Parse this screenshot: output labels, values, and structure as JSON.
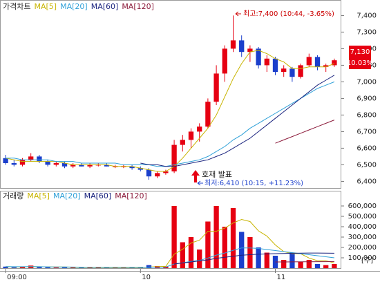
{
  "chart_data": [
    {
      "type": "candlestick",
      "legend_title": "가격차트",
      "categories": [
        "09:00",
        null,
        null,
        null,
        null,
        null,
        null,
        null,
        null,
        null,
        null,
        null,
        null,
        null,
        null,
        null,
        "10",
        null,
        null,
        null,
        null,
        null,
        null,
        null,
        null,
        null,
        null,
        null,
        null,
        null,
        null,
        null,
        "11",
        null,
        null,
        null,
        null,
        null,
        null,
        null
      ],
      "open": [
        6540,
        6510,
        6500,
        6530,
        6550,
        6520,
        6500,
        6510,
        6490,
        6500,
        6490,
        6500,
        6500,
        6490,
        6490,
        6490,
        6480,
        6470,
        6430,
        6450,
        6460,
        6620,
        6650,
        6700,
        6730,
        6880,
        7050,
        7200,
        7250,
        7180,
        7200,
        7100,
        7140,
        7060,
        7080,
        7030,
        7100,
        7150,
        7090,
        7100
      ],
      "high": [
        6560,
        6530,
        6540,
        6570,
        6560,
        6530,
        6520,
        6520,
        6510,
        6510,
        6510,
        6510,
        6510,
        6500,
        6500,
        6500,
        6490,
        6480,
        6460,
        6470,
        6650,
        6680,
        6720,
        6750,
        6900,
        7100,
        7220,
        7400,
        7280,
        7220,
        7210,
        7160,
        7150,
        7100,
        7090,
        7110,
        7170,
        7160,
        7110,
        7140
      ],
      "low": [
        6500,
        6490,
        6490,
        6520,
        6510,
        6490,
        6490,
        6480,
        6480,
        6490,
        6480,
        6490,
        6490,
        6480,
        6480,
        6470,
        6460,
        6410,
        6420,
        6440,
        6450,
        6580,
        6600,
        6640,
        6720,
        6860,
        7000,
        7180,
        7150,
        7120,
        7080,
        7060,
        7040,
        7030,
        7000,
        7020,
        7090,
        7070,
        7060,
        7090
      ],
      "close": [
        6510,
        6500,
        6530,
        6550,
        6520,
        6500,
        6510,
        6490,
        6500,
        6490,
        6500,
        6500,
        6490,
        6490,
        6490,
        6480,
        6470,
        6430,
        6450,
        6460,
        6620,
        6650,
        6700,
        6730,
        6880,
        7050,
        7200,
        7250,
        7180,
        7200,
        7100,
        7140,
        7060,
        7080,
        7030,
        7100,
        7150,
        7090,
        7100,
        7130
      ],
      "up_color": "#e60012",
      "down_color": "#1b3fcc",
      "series": [
        {
          "name": "MA[5]",
          "color": "#c8b400",
          "values": [
            6540,
            6530,
            6520,
            6520,
            6520,
            6520,
            6520,
            6510,
            6500,
            6500,
            6500,
            6500,
            6500,
            6490,
            6490,
            6490,
            6480,
            6470,
            6460,
            6460,
            6490,
            6540,
            6600,
            6660,
            6720,
            6800,
            6910,
            7020,
            7110,
            7180,
            7190,
            7170,
            7140,
            7120,
            7080,
            7080,
            7090,
            7090,
            7090,
            7110
          ]
        },
        {
          "name": "MA[20]",
          "color": "#2ea0d8",
          "values": [
            6540,
            6540,
            6530,
            6530,
            6530,
            6530,
            6520,
            6520,
            6520,
            6510,
            6510,
            6510,
            6510,
            6510,
            6500,
            6500,
            6500,
            6500,
            6490,
            6490,
            6500,
            6510,
            6520,
            6530,
            6550,
            6580,
            6610,
            6650,
            6680,
            6720,
            6750,
            6780,
            6810,
            6840,
            6870,
            6900,
            6930,
            6960,
            6980,
            7000
          ]
        },
        {
          "name": "MA[60]",
          "color": "#1a237e",
          "values": [
            null,
            null,
            null,
            null,
            null,
            null,
            null,
            null,
            null,
            null,
            null,
            null,
            null,
            null,
            null,
            null,
            6510,
            6500,
            6500,
            6490,
            6490,
            6500,
            6510,
            6520,
            6530,
            6550,
            6570,
            6600,
            6630,
            6660,
            6700,
            6740,
            6780,
            6820,
            6860,
            6900,
            6940,
            6980,
            7010,
            7040
          ]
        },
        {
          "name": "MA[120]",
          "color": "#8b1a3a",
          "values": [
            null,
            null,
            null,
            null,
            null,
            null,
            null,
            null,
            null,
            null,
            null,
            null,
            null,
            null,
            null,
            null,
            null,
            null,
            null,
            null,
            null,
            null,
            null,
            null,
            null,
            null,
            null,
            null,
            null,
            null,
            null,
            null,
            6630,
            6650,
            6670,
            6690,
            6710,
            6730,
            6750,
            6770
          ]
        }
      ],
      "ylim": [
        6360,
        7460
      ],
      "yticks": [
        {
          "value": 6400,
          "label": "6,400"
        },
        {
          "value": 6500,
          "label": "6,500"
        },
        {
          "value": 6600,
          "label": "6,600"
        },
        {
          "value": 6700,
          "label": "6,700"
        },
        {
          "value": 6800,
          "label": "6,800"
        },
        {
          "value": 6900,
          "label": "6,900"
        },
        {
          "value": 7000,
          "label": "7,000"
        },
        {
          "value": 7100,
          "label": "7,100"
        },
        {
          "value": 7200,
          "label": "7,200"
        },
        {
          "value": 7300,
          "label": "7,300"
        },
        {
          "value": 7400,
          "label": "7,400"
        }
      ],
      "high_note": "최고:7,400 (10:44, -3.65%)",
      "low_note": "최저:6,410 (10:15, +11.23%)",
      "event_note": "호재 발표",
      "last_price": "7,130",
      "last_change": "10.03%"
    },
    {
      "type": "bar",
      "legend_title": "거래량",
      "values": [
        15000,
        8000,
        12000,
        25000,
        10000,
        9000,
        6000,
        8000,
        7000,
        5000,
        6000,
        9000,
        5000,
        6000,
        4000,
        8000,
        10000,
        30000,
        20000,
        15000,
        600000,
        250000,
        300000,
        180000,
        450000,
        600000,
        400000,
        580000,
        350000,
        300000,
        200000,
        150000,
        120000,
        80000,
        150000,
        60000,
        80000,
        40000,
        30000,
        40000
      ],
      "series": [
        {
          "name": "MA[5]",
          "color": "#c8b400",
          "values": [
            15000,
            13000,
            13000,
            15000,
            14000,
            13000,
            12000,
            12000,
            8000,
            7000,
            7000,
            7000,
            6000,
            6000,
            6000,
            6000,
            6000,
            11000,
            14000,
            17000,
            135000,
            183000,
            243000,
            270000,
            356000,
            356000,
            386000,
            436000,
            470000,
            450000,
            360000,
            310000,
            224000,
            160000,
            140000,
            140000,
            98000,
            72000,
            72000,
            50000
          ]
        },
        {
          "name": "MA[20]",
          "color": "#2ea0d8",
          "values": [
            15000,
            14000,
            14000,
            15000,
            14000,
            13000,
            12000,
            12000,
            11000,
            10000,
            10000,
            10000,
            9000,
            9000,
            9000,
            9000,
            9000,
            10000,
            10000,
            11000,
            40000,
            52000,
            66000,
            75000,
            97000,
            126000,
            146000,
            173000,
            195000,
            195000,
            190000,
            180000,
            170000,
            160000,
            150000,
            140000,
            130000,
            120000,
            110000,
            100000
          ]
        },
        {
          "name": "MA[60]",
          "color": "#1a237e",
          "values": [
            null,
            null,
            null,
            null,
            null,
            null,
            null,
            null,
            null,
            null,
            null,
            null,
            null,
            null,
            null,
            null,
            null,
            null,
            null,
            null,
            40000,
            50000,
            60000,
            70000,
            80000,
            95000,
            105000,
            115000,
            125000,
            130000,
            135000,
            138000,
            140000,
            142000,
            144000,
            145000,
            146000,
            146000,
            145000,
            144000
          ]
        },
        {
          "name": "MA[120]",
          "color": "#8b1a3a",
          "values": [
            null,
            null,
            null,
            null,
            null,
            null,
            null,
            null,
            null,
            null,
            null,
            null,
            null,
            null,
            null,
            null,
            null,
            null,
            null,
            null,
            null,
            null,
            null,
            null,
            null,
            null,
            null,
            null,
            null,
            null,
            null,
            null,
            60000,
            60000,
            61000,
            62000,
            62000,
            63000,
            63000,
            64000
          ]
        }
      ],
      "ylim": [
        0,
        700000
      ],
      "yticks": [
        {
          "value": 100000,
          "label": "100,000"
        },
        {
          "value": 200000,
          "label": "200,000"
        },
        {
          "value": 300000,
          "label": "300,000"
        },
        {
          "value": 400000,
          "label": "400,000"
        },
        {
          "value": 500000,
          "label": "500,000"
        },
        {
          "value": 600000,
          "label": "600,000"
        }
      ],
      "unit_label": "[주]"
    }
  ]
}
